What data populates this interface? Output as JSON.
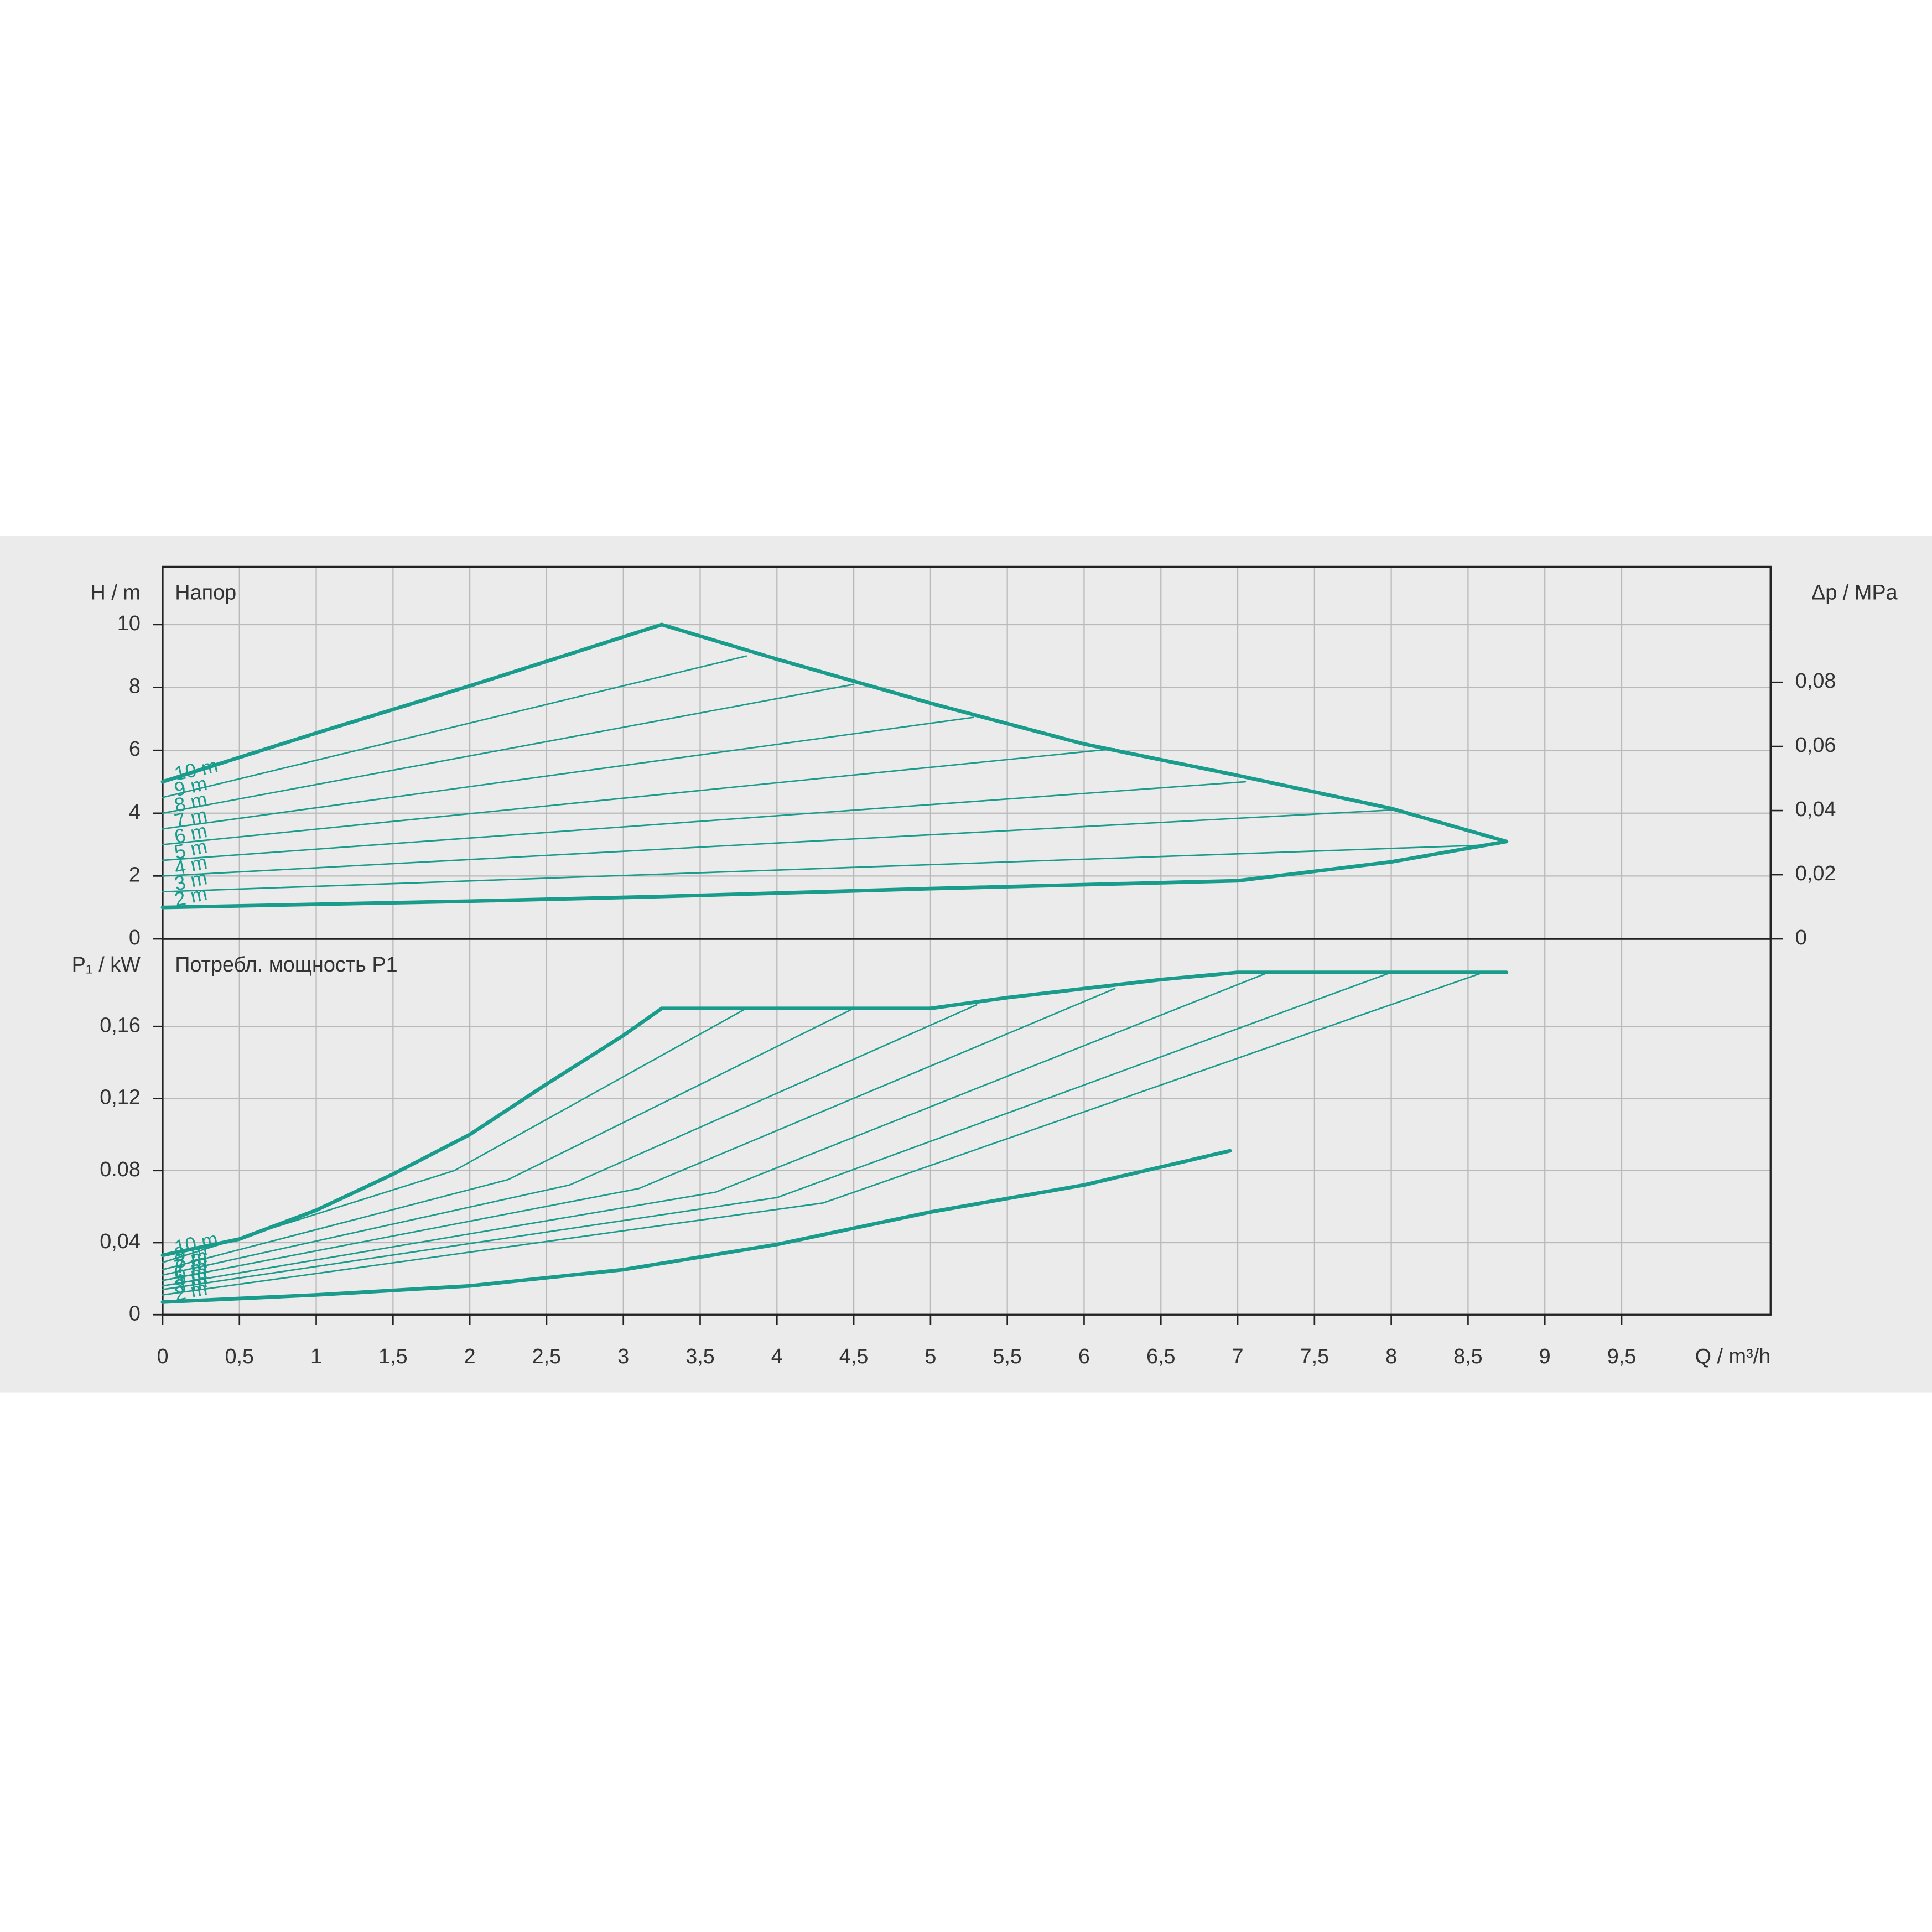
{
  "chart_data": [
    {
      "type": "line",
      "title": "Напор",
      "y_label": "H / m",
      "y2_label": "Δp / MPa",
      "ylim": [
        0,
        11.84
      ],
      "yticks": [
        0,
        2,
        4,
        6,
        8,
        10
      ],
      "y2lim": [
        0,
        0.116
      ],
      "y2ticks": [
        0,
        {
          "value": 0.02,
          "label": "0,02"
        },
        {
          "value": 0.04,
          "label": "0,04"
        },
        {
          "value": 0.06,
          "label": "0,06"
        },
        {
          "value": 0.08,
          "label": "0,08"
        }
      ],
      "grid": true,
      "color": "#1a9c8c",
      "series": [
        {
          "name": "10 m",
          "width": 3,
          "x": [
            0,
            1,
            2,
            3.25
          ],
          "values": [
            5.0,
            6.55,
            8.05,
            10.0
          ]
        },
        {
          "width": 3,
          "x": [
            3.25,
            4,
            5,
            6,
            7,
            8,
            8.75
          ],
          "values": [
            10.0,
            8.9,
            7.5,
            6.2,
            5.2,
            4.15,
            3.1
          ]
        },
        {
          "name": "9 m",
          "width": 1.2,
          "x": [
            0,
            3.8
          ],
          "values": [
            4.5,
            9.0
          ]
        },
        {
          "name": "8 m",
          "width": 1.2,
          "x": [
            0,
            4.5
          ],
          "values": [
            4.0,
            8.1
          ]
        },
        {
          "name": "7 m",
          "width": 1.2,
          "x": [
            0,
            5.28
          ],
          "values": [
            3.5,
            7.05
          ]
        },
        {
          "name": "6 m",
          "width": 1.2,
          "x": [
            0,
            6.2
          ],
          "values": [
            3.0,
            6.05
          ]
        },
        {
          "name": "5 m",
          "width": 1.2,
          "x": [
            0,
            7.05
          ],
          "values": [
            2.5,
            5.0
          ]
        },
        {
          "name": "4 m",
          "width": 1.2,
          "x": [
            0,
            8.0
          ],
          "values": [
            2.0,
            4.1
          ]
        },
        {
          "name": "3 m",
          "width": 1.2,
          "x": [
            0,
            8.7
          ],
          "values": [
            1.5,
            3.0
          ]
        },
        {
          "name": "2 m",
          "width": 3,
          "x": [
            0,
            2,
            3.25,
            5,
            7,
            8,
            8.75
          ],
          "values": [
            1.0,
            1.2,
            1.35,
            1.6,
            1.85,
            2.45,
            3.1
          ]
        }
      ]
    },
    {
      "type": "line",
      "title": "Потребл. мощность P1",
      "y_label": "P₁ / kW",
      "x_label": "Q / m³/h",
      "ylim": [
        0,
        0.2086
      ],
      "yticks": [
        0,
        {
          "value": 0.04,
          "label": "0,04"
        },
        {
          "value": 0.08,
          "label": "0.08"
        },
        {
          "value": 0.12,
          "label": "0,12"
        },
        {
          "value": 0.16,
          "label": "0,16"
        }
      ],
      "xlim": [
        0,
        10.47
      ],
      "xticks": [
        0,
        {
          "value": 0.5,
          "label": "0,5"
        },
        1,
        {
          "value": 1.5,
          "label": "1,5"
        },
        2,
        {
          "value": 2.5,
          "label": "2,5"
        },
        3,
        {
          "value": 3.5,
          "label": "3,5"
        },
        4,
        {
          "value": 4.5,
          "label": "4,5"
        },
        5,
        {
          "value": 5.5,
          "label": "5,5"
        },
        6,
        {
          "value": 6.5,
          "label": "6,5"
        },
        7,
        {
          "value": 7.5,
          "label": "7,5"
        },
        8,
        {
          "value": 8.5,
          "label": "8,5"
        },
        9,
        {
          "value": 9.5,
          "label": "9,5"
        }
      ],
      "grid": true,
      "color": "#1a9c8c",
      "series": [
        {
          "name": "10 m",
          "width": 3,
          "x": [
            0,
            0.5,
            1,
            1.5,
            2,
            2.5,
            3,
            3.25
          ],
          "values": [
            0.033,
            0.042,
            0.058,
            0.078,
            0.1,
            0.128,
            0.155,
            0.17
          ]
        },
        {
          "width": 3,
          "x": [
            3.25,
            5,
            5.5,
            6,
            6.5,
            7,
            8.75
          ],
          "values": [
            0.17,
            0.17,
            0.176,
            0.181,
            0.186,
            0.19,
            0.19
          ]
        },
        {
          "name": "9 m",
          "width": 1.2,
          "x": [
            0,
            1.9,
            3.8
          ],
          "values": [
            0.029,
            0.08,
            0.17
          ]
        },
        {
          "name": "8 m",
          "width": 1.2,
          "x": [
            0,
            2.25,
            4.5
          ],
          "values": [
            0.025,
            0.075,
            0.17
          ]
        },
        {
          "name": "7 m",
          "width": 1.2,
          "x": [
            0,
            2.65,
            5.3
          ],
          "values": [
            0.022,
            0.072,
            0.172
          ]
        },
        {
          "name": "6 m",
          "width": 1.2,
          "x": [
            0,
            3.1,
            6.2
          ],
          "values": [
            0.019,
            0.07,
            0.181
          ]
        },
        {
          "name": "5 m",
          "width": 1.2,
          "x": [
            0,
            3.6,
            7.2
          ],
          "values": [
            0.016,
            0.068,
            0.19
          ]
        },
        {
          "name": "4 m",
          "width": 1.2,
          "x": [
            0,
            4,
            8
          ],
          "values": [
            0.014,
            0.065,
            0.19
          ]
        },
        {
          "name": "3 m",
          "width": 1.2,
          "x": [
            0,
            4.3,
            8.6
          ],
          "values": [
            0.011,
            0.062,
            0.19
          ]
        },
        {
          "name": "2 m",
          "width": 3,
          "x": [
            0,
            1,
            2,
            3,
            4,
            5,
            6,
            6.95
          ],
          "values": [
            0.007,
            0.011,
            0.016,
            0.025,
            0.039,
            0.057,
            0.072,
            0.091
          ]
        }
      ]
    }
  ]
}
